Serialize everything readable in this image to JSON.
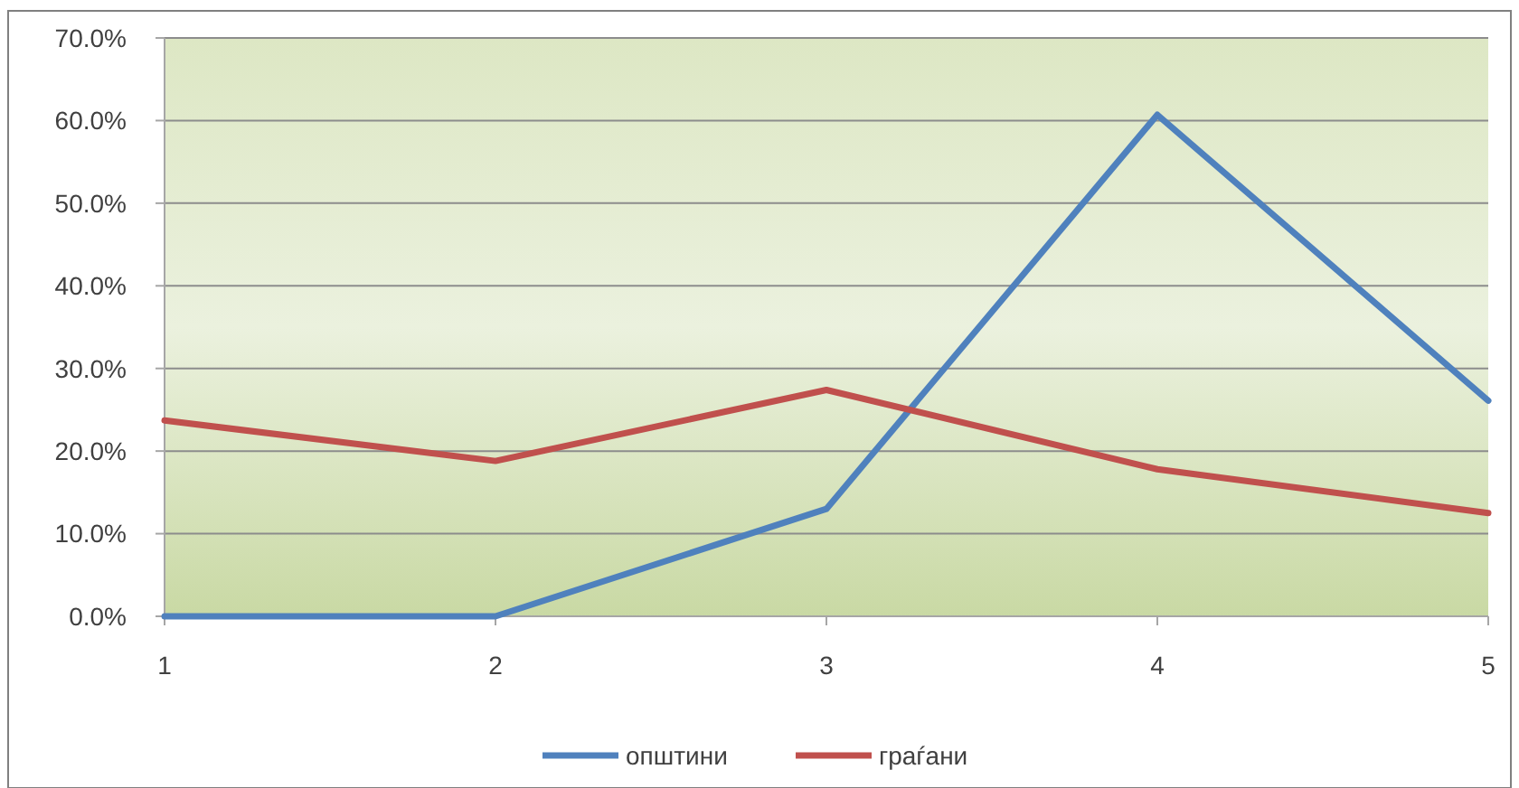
{
  "chart_data": {
    "type": "line",
    "x": [
      1,
      2,
      3,
      4,
      5
    ],
    "series": [
      {
        "name": "општини",
        "color": "#4f81bd",
        "values": [
          0,
          0,
          13.0,
          60.7,
          26.1
        ]
      },
      {
        "name": "граѓани",
        "color": "#c0504d",
        "values": [
          23.7,
          18.8,
          27.4,
          17.8,
          12.5
        ]
      }
    ],
    "xlim": [
      1,
      5
    ],
    "xticks": [
      1,
      2,
      3,
      4,
      5
    ],
    "ylim": [
      0,
      70
    ],
    "yticks": [
      {
        "value": 0,
        "label": "0.0%"
      },
      {
        "value": 10,
        "label": "10.0%"
      },
      {
        "value": 20,
        "label": "20.0%"
      },
      {
        "value": 30,
        "label": "30.0%"
      },
      {
        "value": 40,
        "label": "40.0%"
      },
      {
        "value": 50,
        "label": "50.0%"
      },
      {
        "value": 60,
        "label": "60.0%"
      },
      {
        "value": 70,
        "label": "70.0%"
      }
    ],
    "grid": "y",
    "legend": "bottom",
    "marker": "none",
    "line_style": "solid"
  }
}
